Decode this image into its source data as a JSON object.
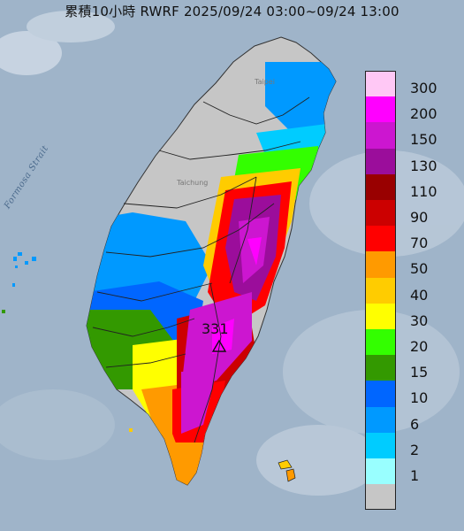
{
  "title": "累積10小時 RWRF 2025/09/24 03:00~09/24 13:00",
  "map_labels": {
    "strait": "Formosa Strait",
    "peak_value": "331",
    "taipei": "Taipei",
    "taichung": "Taichung"
  },
  "legend": {
    "items": [
      {
        "label": "300",
        "color": "#ffc8f5"
      },
      {
        "label": "200",
        "color": "#ff00ff"
      },
      {
        "label": "150",
        "color": "#cc16d0"
      },
      {
        "label": "130",
        "color": "#9b0d9b"
      },
      {
        "label": "110",
        "color": "#990000"
      },
      {
        "label": "90",
        "color": "#cc0000"
      },
      {
        "label": "70",
        "color": "#ff0000"
      },
      {
        "label": "50",
        "color": "#ff9a00"
      },
      {
        "label": "40",
        "color": "#ffcc00"
      },
      {
        "label": "30",
        "color": "#ffff00"
      },
      {
        "label": "20",
        "color": "#33ff00"
      },
      {
        "label": "15",
        "color": "#339900"
      },
      {
        "label": "10",
        "color": "#0066ff"
      },
      {
        "label": "6",
        "color": "#0099ff"
      },
      {
        "label": "2",
        "color": "#00ccff"
      },
      {
        "label": "1",
        "color": "#99ffff"
      },
      {
        "label": "",
        "color": "#c6c6c6"
      }
    ]
  },
  "colors": {
    "sea": "#9fb4c9",
    "no_rain": "#c6c6c6"
  }
}
